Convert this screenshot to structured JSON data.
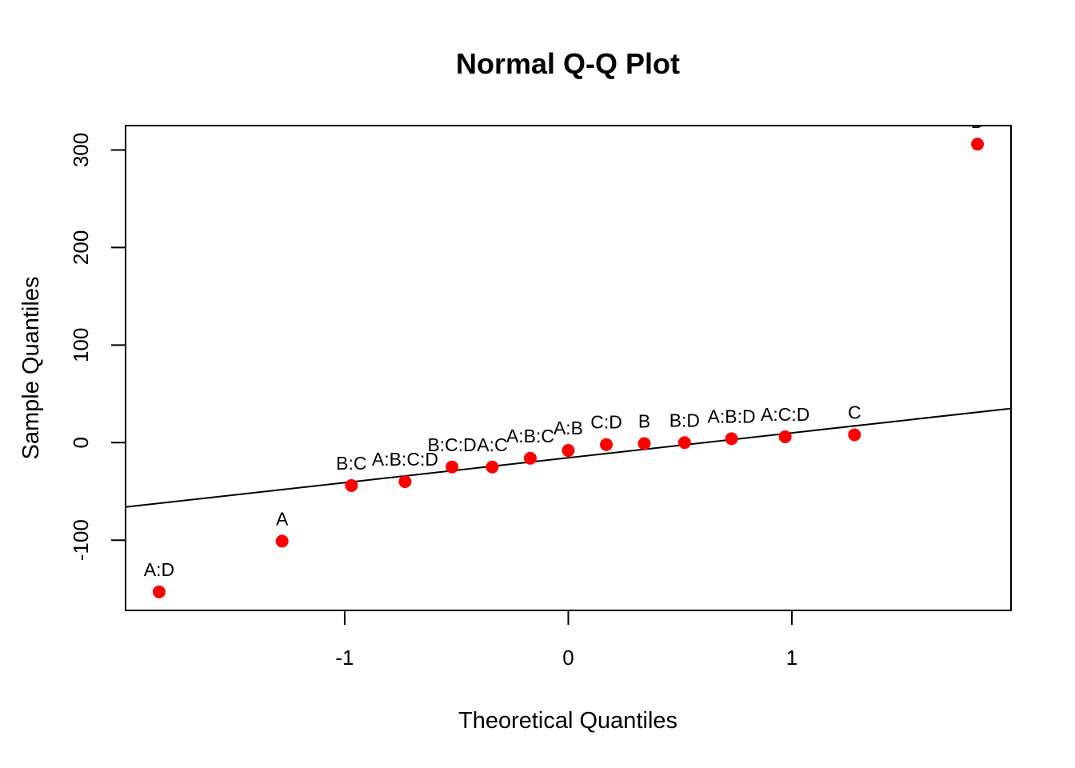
{
  "chart_data": {
    "type": "scatter",
    "title": "Normal Q-Q Plot",
    "xlabel": "Theoretical Quantiles",
    "ylabel": "Sample Quantiles",
    "xlim": [
      -1.98,
      1.98
    ],
    "ylim": [
      -172,
      325
    ],
    "x_ticks": [
      -1,
      0,
      1
    ],
    "x_tick_labels": [
      "-1",
      "0",
      "1"
    ],
    "y_ticks": [
      -100,
      0,
      100,
      200,
      300
    ],
    "y_tick_labels": [
      "-100",
      "0",
      "100",
      "200",
      "300"
    ],
    "point_color": "#ff0000",
    "line_color": "#000000",
    "reference_line": {
      "x": [
        -1.98,
        1.98
      ],
      "y": [
        -66,
        35
      ]
    },
    "points": [
      {
        "label": "A:D",
        "x": -1.83,
        "y": -153
      },
      {
        "label": "A",
        "x": -1.28,
        "y": -101
      },
      {
        "label": "B:C",
        "x": -0.97,
        "y": -44
      },
      {
        "label": "A:B:C:D",
        "x": -0.73,
        "y": -40
      },
      {
        "label": "B:C:D",
        "x": -0.52,
        "y": -25
      },
      {
        "label": "A:C",
        "x": -0.34,
        "y": -25
      },
      {
        "label": "A:B:C",
        "x": -0.17,
        "y": -16
      },
      {
        "label": "A:B",
        "x": 0.0,
        "y": -8
      },
      {
        "label": "C:D",
        "x": 0.17,
        "y": -2
      },
      {
        "label": "B",
        "x": 0.34,
        "y": -1
      },
      {
        "label": "B:D",
        "x": 0.52,
        "y": 0
      },
      {
        "label": "A:B:D",
        "x": 0.73,
        "y": 4
      },
      {
        "label": "A:C:D",
        "x": 0.97,
        "y": 6
      },
      {
        "label": "C",
        "x": 1.28,
        "y": 8
      },
      {
        "label": "D",
        "x": 1.83,
        "y": 306
      }
    ]
  }
}
